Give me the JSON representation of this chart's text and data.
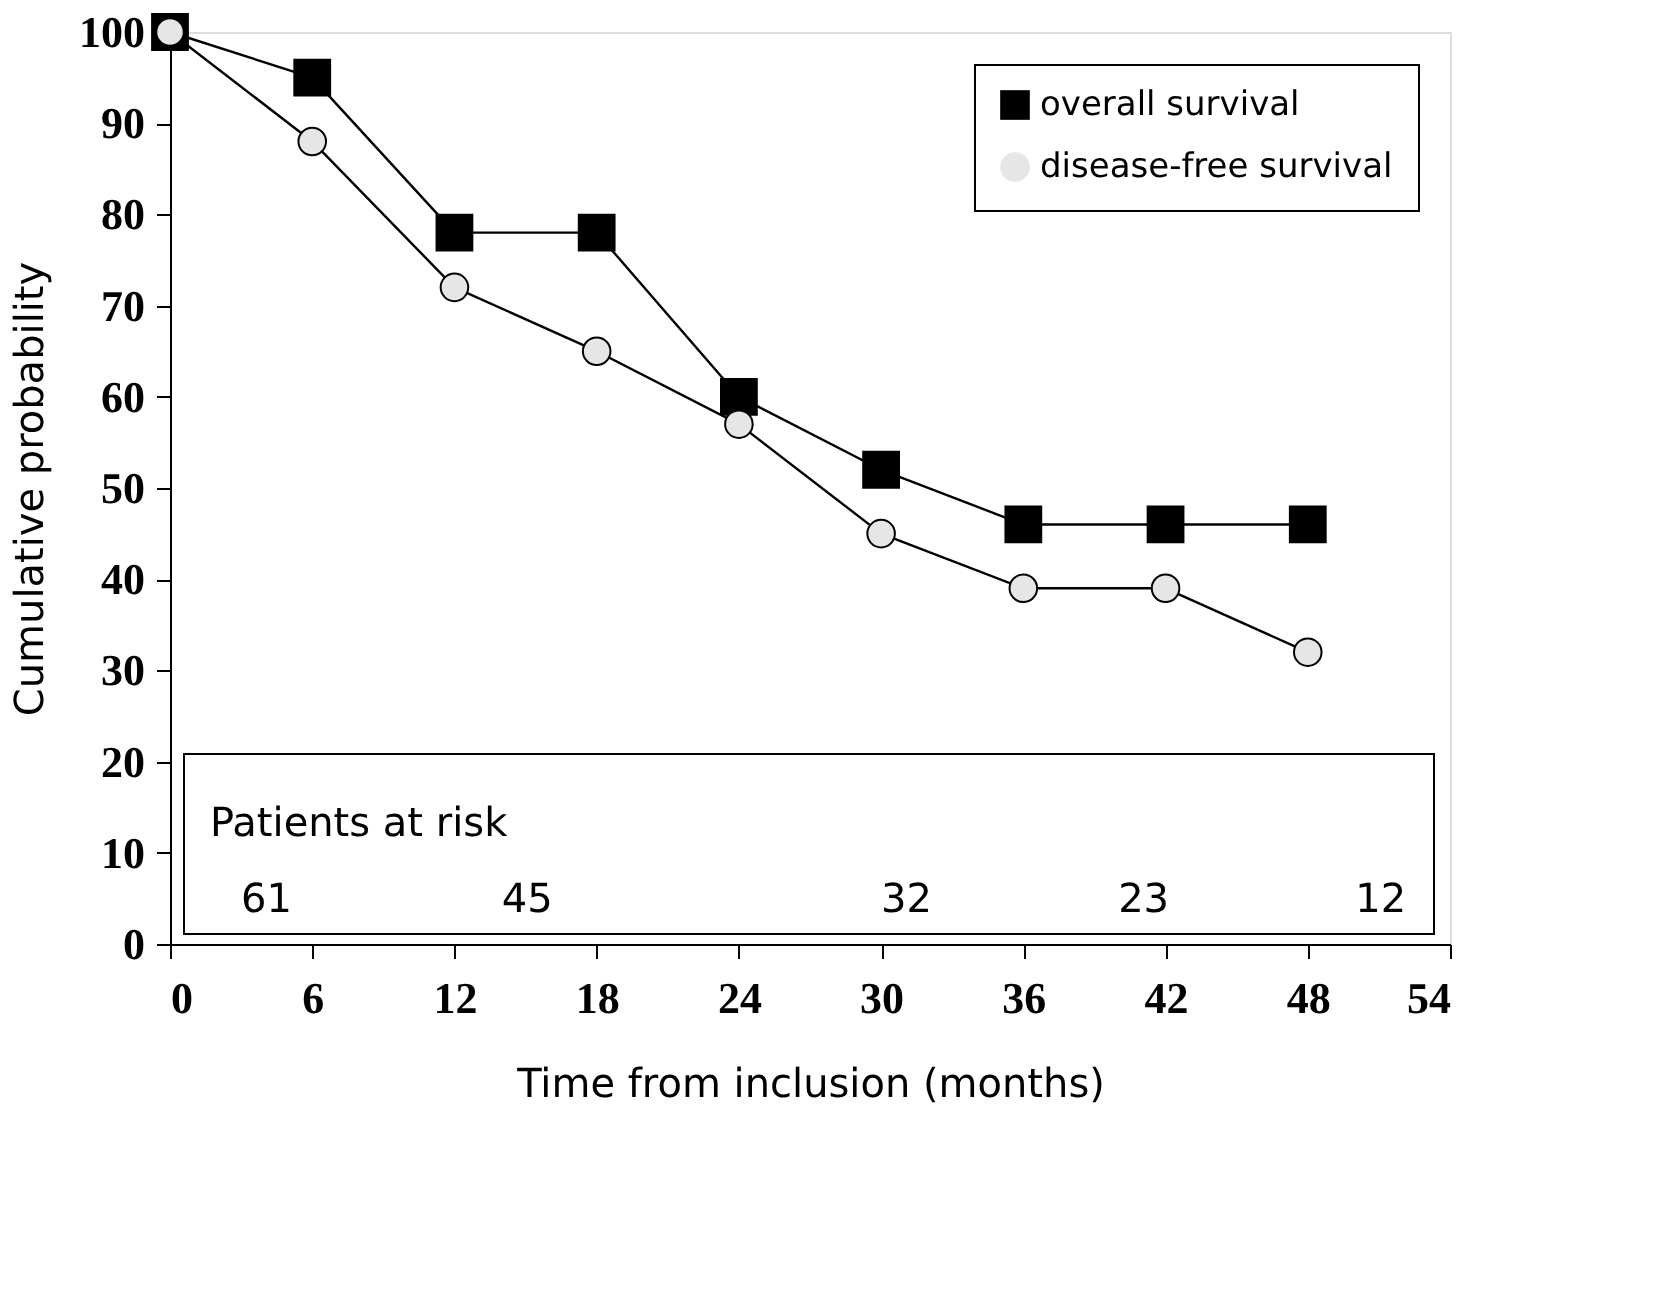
{
  "chart_data": {
    "type": "line",
    "xlabel": "Time from inclusion (months)",
    "ylabel": "Cumulative probability",
    "x": [
      0,
      6,
      12,
      18,
      24,
      30,
      36,
      42,
      48
    ],
    "series": [
      {
        "name": "overall survival",
        "color": "#000000",
        "marker": "square",
        "values": [
          100,
          95,
          78,
          78,
          60,
          52,
          46,
          46,
          46
        ]
      },
      {
        "name": "disease-free survival",
        "color": "#e6e6e6",
        "marker": "circle",
        "values": [
          100,
          88,
          72,
          65,
          57,
          45,
          39,
          39,
          32
        ]
      }
    ],
    "xlim": [
      0,
      54
    ],
    "xticks": [
      0,
      6,
      12,
      18,
      24,
      30,
      36,
      42,
      48,
      54
    ],
    "ylim": [
      0,
      100
    ],
    "yticks": [
      0,
      10,
      20,
      30,
      40,
      50,
      60,
      70,
      80,
      90,
      100
    ],
    "grid": false,
    "legend": "top right",
    "line_style": "solid",
    "annotations": [
      "Patients at risk",
      "61",
      "45",
      "32",
      "23",
      "12"
    ]
  }
}
